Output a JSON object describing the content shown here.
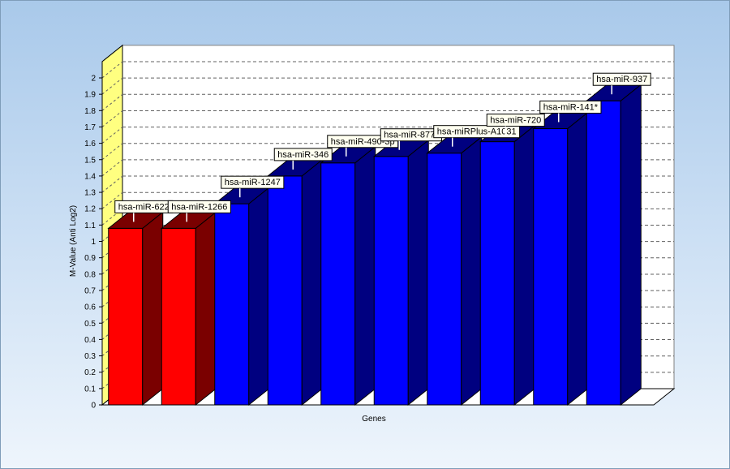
{
  "chart_data": {
    "type": "bar",
    "title": "",
    "xlabel": "Genes",
    "ylabel": "M-Value (Anti Log2)",
    "ylim": [
      0,
      2.1
    ],
    "yticks": [
      "0",
      "0.1",
      "0.2",
      "0.3",
      "0.4",
      "0.5",
      "0.6",
      "0.7",
      "0.8",
      "0.9",
      "1",
      "1.1",
      "1.2",
      "1.3",
      "1.4",
      "1.5",
      "1.6",
      "1.7",
      "1.8",
      "1.9",
      "2"
    ],
    "grid": true,
    "three_d": true,
    "categories": [
      "hsa-miR-622",
      "hsa-miR-1266",
      "hsa-miR-1247",
      "hsa-miR-346",
      "hsa-miR-490-3p",
      "hsa-miR-877*",
      "hsa-miRPlus-A1031",
      "hsa-miR-720",
      "hsa-miR-141*",
      "hsa-miR-937"
    ],
    "values": [
      1.08,
      1.08,
      1.23,
      1.4,
      1.48,
      1.52,
      1.54,
      1.61,
      1.69,
      1.86
    ],
    "bar_colors": [
      "#ff0000",
      "#ff0000",
      "#0000ff",
      "#0000ff",
      "#0000ff",
      "#0000ff",
      "#0000ff",
      "#0000ff",
      "#0000ff",
      "#0000ff"
    ],
    "side_colors": [
      "#7a0000",
      "#7a0000",
      "#000080",
      "#000080",
      "#000080",
      "#000080",
      "#000080",
      "#000080",
      "#000080",
      "#000080"
    ],
    "wall_color": "#ffff80",
    "floor_color": "#ffffff"
  }
}
